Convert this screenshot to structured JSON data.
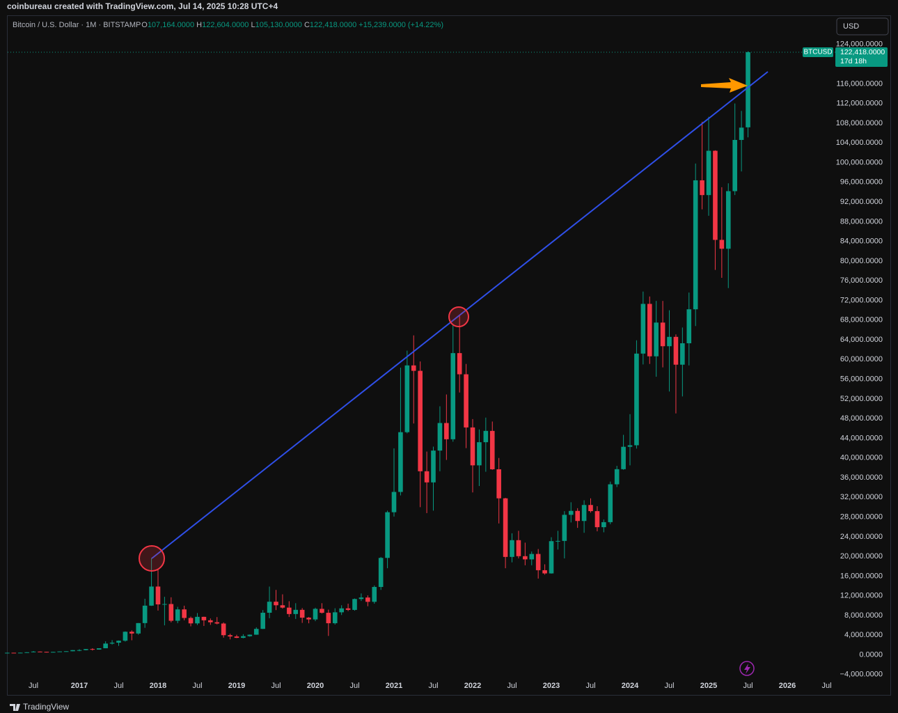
{
  "chart_data": {
    "type": "candlestick",
    "attribution": "coinbureau created with TradingView.com, Jul 14, 2025 10:28 UTC+4",
    "symbol_title": "Bitcoin / U.S. Dollar · 1M · BITSTAMP",
    "legend": {
      "open_label": "O",
      "open": "107,164.0000",
      "high_label": "H",
      "high": "122,604.0000",
      "low_label": "L",
      "low": "105,130.0000",
      "close_label": "C",
      "close": "122,418.0000",
      "change": "+15,239.0000 (+14.22%)"
    },
    "currency_button": "USD",
    "price_tag": {
      "symbol": "BTCUSD",
      "price": "122,418.0000",
      "countdown": "17d 18h"
    },
    "branding": "TradingView",
    "up_color": "#089981",
    "down_color": "#f23645",
    "grid": false,
    "ylim": [
      -4450,
      129350
    ],
    "yticks": [
      {
        "value": -4000,
        "label": "−4,000.0000"
      },
      {
        "value": 0,
        "label": "0.0000"
      },
      {
        "value": 4000,
        "label": "4,000.0000"
      },
      {
        "value": 8000,
        "label": "8,000.0000"
      },
      {
        "value": 12000,
        "label": "12,000.0000"
      },
      {
        "value": 16000,
        "label": "16,000.0000"
      },
      {
        "value": 20000,
        "label": "20,000.0000"
      },
      {
        "value": 24000,
        "label": "24,000.0000"
      },
      {
        "value": 28000,
        "label": "28,000.0000"
      },
      {
        "value": 32000,
        "label": "32,000.0000"
      },
      {
        "value": 36000,
        "label": "36,000.0000"
      },
      {
        "value": 40000,
        "label": "40,000.0000"
      },
      {
        "value": 44000,
        "label": "44,000.0000"
      },
      {
        "value": 48000,
        "label": "48,000.0000"
      },
      {
        "value": 52000,
        "label": "52,000.0000"
      },
      {
        "value": 56000,
        "label": "56,000.0000"
      },
      {
        "value": 60000,
        "label": "60,000.0000"
      },
      {
        "value": 64000,
        "label": "64,000.0000"
      },
      {
        "value": 68000,
        "label": "68,000.0000"
      },
      {
        "value": 72000,
        "label": "72,000.0000"
      },
      {
        "value": 76000,
        "label": "76,000.0000"
      },
      {
        "value": 80000,
        "label": "80,000.0000"
      },
      {
        "value": 84000,
        "label": "84,000.0000"
      },
      {
        "value": 88000,
        "label": "88,000.0000"
      },
      {
        "value": 92000,
        "label": "92,000.0000"
      },
      {
        "value": 96000,
        "label": "96,000.0000"
      },
      {
        "value": 100000,
        "label": "100,000.0000"
      },
      {
        "value": 104000,
        "label": "104,000.0000"
      },
      {
        "value": 108000,
        "label": "108,000.0000"
      },
      {
        "value": 112000,
        "label": "112,000.0000"
      },
      {
        "value": 116000,
        "label": "116,000.0000"
      },
      {
        "value": 124000,
        "label": "124,000.0000"
      }
    ],
    "categories": [
      null,
      null,
      null,
      null,
      "Jul",
      null,
      null,
      null,
      null,
      null,
      null,
      "2017",
      null,
      null,
      null,
      null,
      null,
      "Jul",
      null,
      null,
      null,
      null,
      null,
      "2018",
      null,
      null,
      null,
      null,
      null,
      "Jul",
      null,
      null,
      null,
      null,
      null,
      "2019",
      null,
      null,
      null,
      null,
      null,
      "Jul",
      null,
      null,
      null,
      null,
      null,
      "2020",
      null,
      null,
      null,
      null,
      null,
      "Jul",
      null,
      null,
      null,
      null,
      null,
      "2021",
      null,
      null,
      null,
      null,
      null,
      "Jul",
      null,
      null,
      null,
      null,
      null,
      "2022",
      null,
      null,
      null,
      null,
      null,
      "Jul",
      null,
      null,
      null,
      null,
      null,
      "2023",
      null,
      null,
      null,
      null,
      null,
      "Jul",
      null,
      null,
      null,
      null,
      null,
      "2024",
      null,
      null,
      null,
      null,
      null,
      "Jul",
      null,
      null,
      null,
      null,
      null,
      "2025",
      null,
      null,
      null,
      null,
      null,
      "Jul",
      null,
      null,
      null,
      null,
      null,
      "2026",
      null,
      null,
      null,
      null,
      null,
      "Jul"
    ],
    "open": [
      370,
      437,
      416,
      448,
      531,
      673,
      624,
      573,
      609,
      700,
      742,
      963,
      970,
      1190,
      1079,
      1348,
      2300,
      2480,
      2875,
      4700,
      4340,
      6460,
      10000,
      13880,
      10260,
      10330,
      6930,
      9240,
      7500,
      6400,
      7730,
      7025,
      6630,
      6370,
      4000,
      3740,
      3460,
      3800,
      4100,
      5280,
      8560,
      10800,
      10080,
      9600,
      8300,
      9150,
      7560,
      7200,
      9350,
      8550,
      6430,
      8650,
      9450,
      9140,
      11350,
      11650,
      10780,
      13800,
      19700,
      28980,
      33100,
      45240,
      58800,
      57700,
      37300,
      35040,
      41500,
      47100,
      43800,
      61300,
      57000,
      46200,
      38500,
      43200,
      45500,
      37700,
      31800,
      19900,
      23300,
      20050,
      19400,
      20500,
      17200,
      16550,
      23100,
      23150,
      28450,
      29250,
      27200,
      30450,
      29200,
      25940,
      26960,
      34650,
      37720,
      42270,
      42580,
      61200,
      71300,
      60650,
      67500,
      62700,
      64600,
      58950,
      63300,
      70200,
      96400,
      93400,
      102400,
      84300,
      82500,
      94200,
      104600,
      107164,
      null,
      null,
      null,
      null,
      null,
      null,
      null,
      null,
      null,
      null,
      null,
      null
    ],
    "high": [
      448,
      440,
      468,
      550,
      780,
      703,
      626,
      630,
      716,
      755,
      975,
      1150,
      1210,
      1350,
      1350,
      2760,
      3000,
      2930,
      4770,
      4980,
      6470,
      11400,
      19666,
      17250,
      11800,
      11700,
      9760,
      9990,
      7780,
      8500,
      7760,
      7400,
      7680,
      6600,
      4300,
      4080,
      4200,
      4150,
      5600,
      9100,
      13880,
      13200,
      12300,
      10900,
      10500,
      9500,
      7700,
      9580,
      10500,
      9190,
      9470,
      10080,
      10400,
      11450,
      12480,
      12090,
      14100,
      19890,
      29300,
      41950,
      58350,
      61800,
      64900,
      59600,
      41300,
      42300,
      50500,
      52900,
      67000,
      69000,
      59100,
      47900,
      45800,
      48200,
      47400,
      40000,
      31900,
      24700,
      25200,
      22800,
      21000,
      21500,
      18400,
      23900,
      25200,
      29200,
      31000,
      29800,
      31400,
      31800,
      30200,
      27500,
      35200,
      38400,
      44700,
      48900,
      63900,
      73800,
      72800,
      71900,
      71900,
      70000,
      65100,
      66500,
      73600,
      99800,
      108300,
      109300,
      102500,
      95000,
      95800,
      112000,
      110500,
      122604,
      null,
      null,
      null,
      null,
      null,
      null,
      null,
      null,
      null,
      null,
      null,
      null
    ],
    "low": [
      366,
      400,
      413,
      440,
      520,
      605,
      480,
      570,
      604,
      680,
      740,
      750,
      920,
      890,
      1060,
      1340,
      2100,
      1830,
      2700,
      2970,
      4100,
      5500,
      9950,
      9000,
      6000,
      6600,
      6430,
      7030,
      5800,
      6070,
      5880,
      6100,
      6200,
      3500,
      3150,
      3400,
      3370,
      3700,
      4080,
      5250,
      7450,
      9100,
      9400,
      7700,
      7300,
      6500,
      6420,
      6850,
      8400,
      3850,
      6150,
      8100,
      8900,
      8980,
      10950,
      9880,
      10400,
      13200,
      17600,
      28100,
      32400,
      45000,
      47000,
      30000,
      28800,
      29300,
      37300,
      39600,
      43300,
      53300,
      42000,
      33000,
      34300,
      37200,
      37600,
      26700,
      17600,
      18800,
      19600,
      18200,
      18200,
      15500,
      16300,
      16500,
      21400,
      19600,
      26900,
      25800,
      24800,
      28900,
      25100,
      24900,
      26550,
      34100,
      37600,
      38500,
      41900,
      59000,
      59100,
      56500,
      58400,
      53500,
      49050,
      52500,
      58800,
      66800,
      90500,
      89200,
      78200,
      76600,
      74500,
      93400,
      98200,
      105130,
      null,
      null,
      null,
      null,
      null,
      null,
      null,
      null,
      null,
      null,
      null,
      null
    ],
    "close": [
      437,
      416,
      448,
      531,
      673,
      624,
      573,
      609,
      700,
      742,
      963,
      970,
      1190,
      1079,
      1348,
      2300,
      2480,
      2875,
      4700,
      4340,
      6460,
      10000,
      13880,
      10260,
      10330,
      6930,
      9240,
      7500,
      6400,
      7730,
      7025,
      6630,
      6370,
      4000,
      3740,
      3460,
      3800,
      4100,
      5280,
      8560,
      10800,
      10080,
      9600,
      8300,
      9150,
      7560,
      7200,
      9350,
      8550,
      6430,
      8650,
      9450,
      9140,
      11350,
      11650,
      10780,
      13800,
      19700,
      28980,
      33100,
      45240,
      58800,
      57700,
      37300,
      35040,
      41500,
      47100,
      43800,
      61300,
      57000,
      46200,
      38500,
      43200,
      45500,
      37700,
      31800,
      19900,
      23300,
      20050,
      19400,
      20500,
      17200,
      16550,
      23100,
      23150,
      28450,
      29250,
      27200,
      30450,
      29200,
      25940,
      26960,
      34650,
      37720,
      42270,
      42580,
      61200,
      71300,
      60650,
      67500,
      62700,
      64600,
      58950,
      63300,
      70200,
      96400,
      93400,
      102400,
      84300,
      82500,
      94200,
      104600,
      107100,
      122418,
      null,
      null,
      null,
      null,
      null,
      null,
      null,
      null,
      null,
      null,
      null,
      null
    ]
  }
}
